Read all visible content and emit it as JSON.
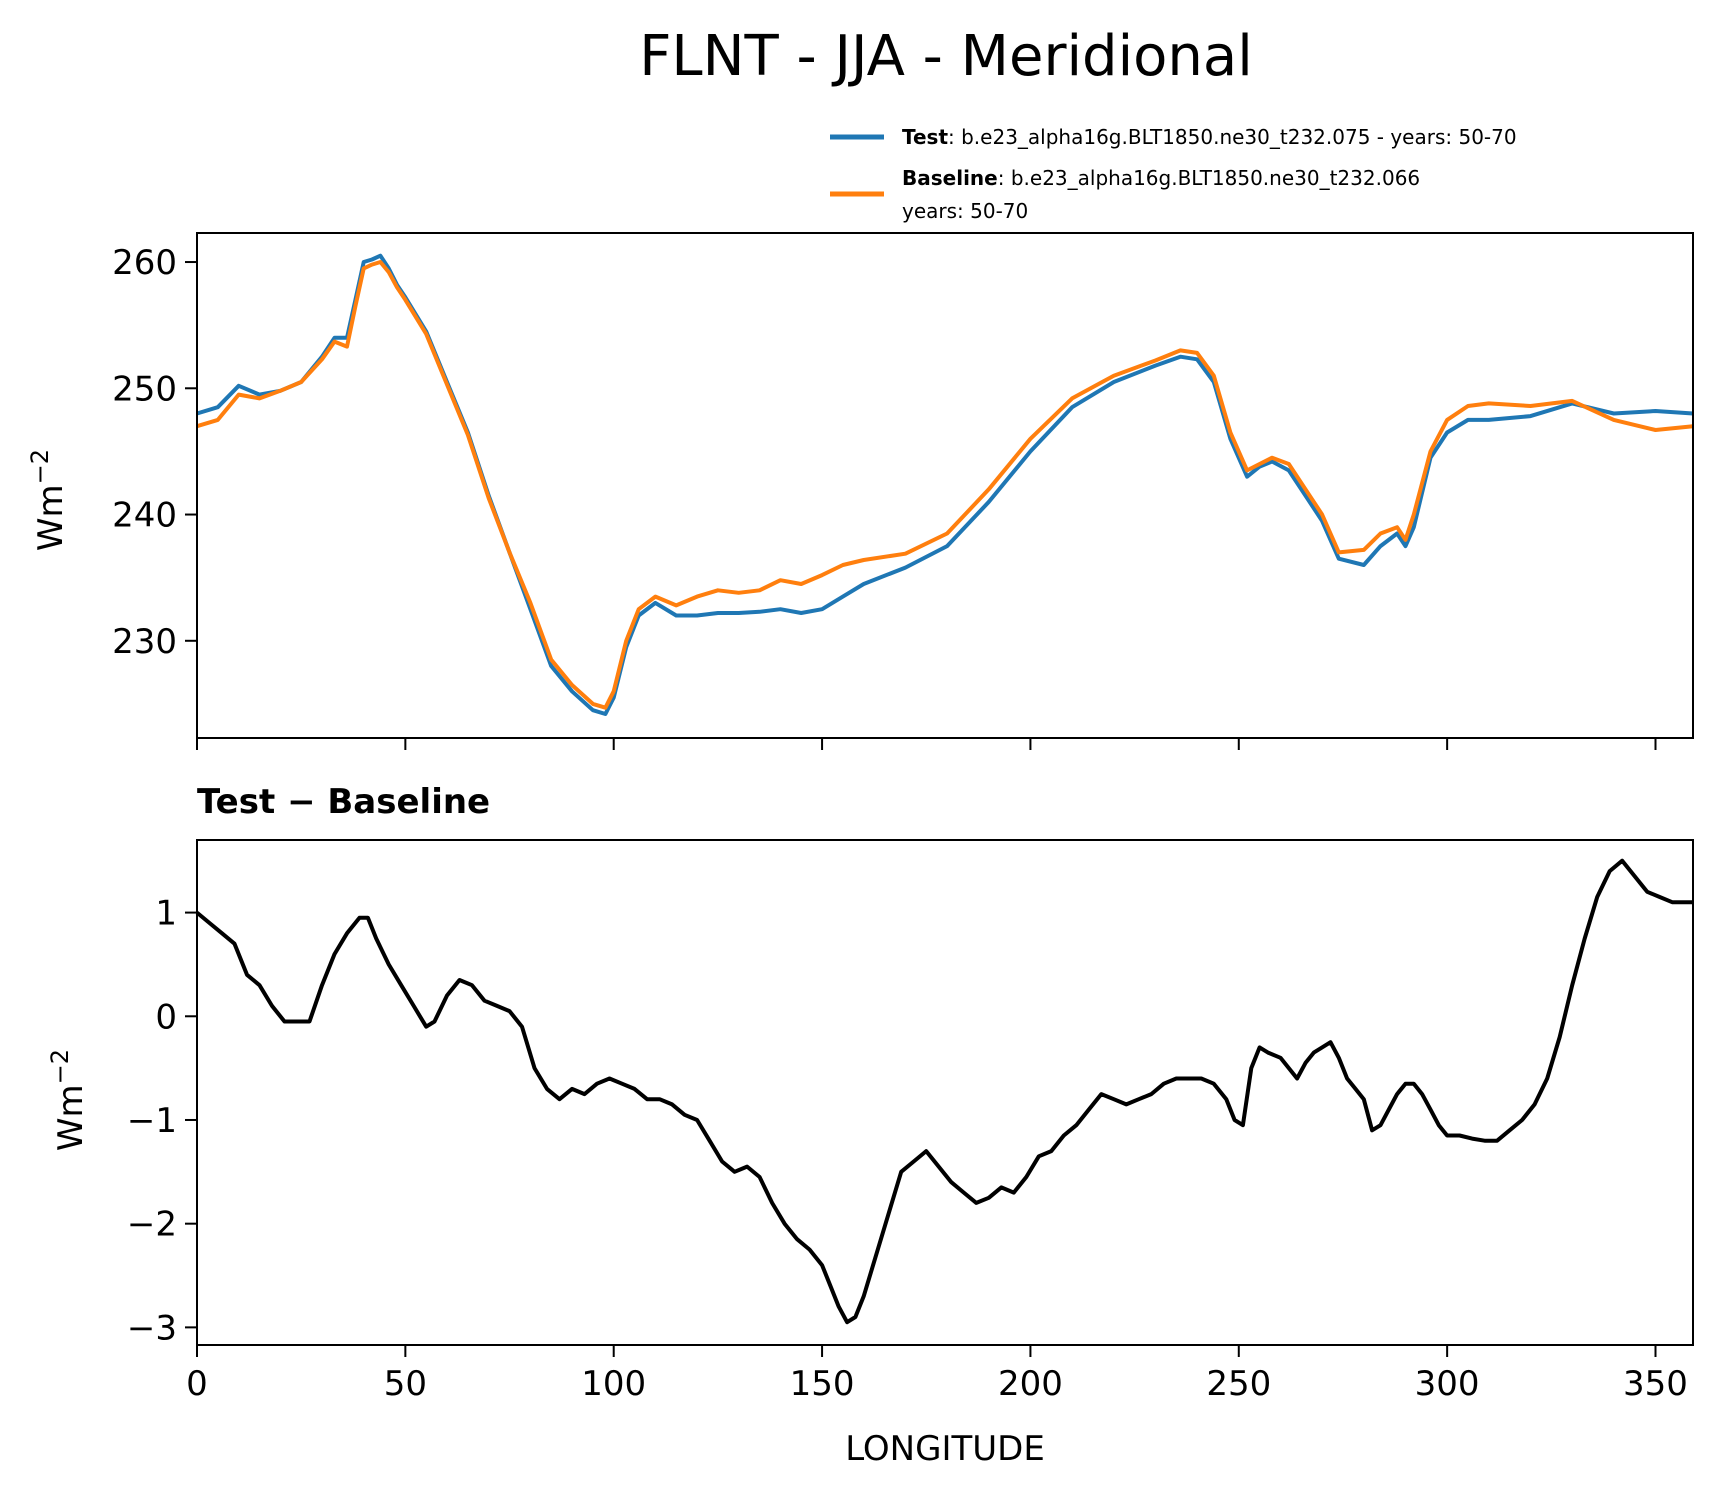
{
  "title": "FLNT - JJA - Meridional",
  "legend": {
    "test_label": "Test",
    "test_text": ": b.e23_alpha16g.BLT1850.ne30_t232.075 - years: 50-70",
    "baseline_label": "Baseline",
    "baseline_text": ": b.e23_alpha16g.BLT1850.ne30_t232.066",
    "baseline_text2": "years: 50-70"
  },
  "colors": {
    "test": "#1f77b4",
    "baseline": "#ff7f0e",
    "diff": "#000000"
  },
  "chart_data": [
    {
      "type": "line",
      "panel": "top",
      "ylabel": "Wm",
      "ylabel_sup": "−2",
      "xlim": [
        0,
        359
      ],
      "ylim": [
        222.3,
        262.3
      ],
      "yticks": [
        230,
        240,
        250,
        260
      ],
      "xticks": [
        0,
        50,
        100,
        150,
        200,
        250,
        300,
        350
      ],
      "series": [
        {
          "name": "Test",
          "x": [
            0,
            5,
            10,
            15,
            20,
            25,
            30,
            33,
            36,
            38,
            40,
            42,
            44,
            46,
            48,
            50,
            55,
            60,
            65,
            70,
            75,
            80,
            85,
            90,
            95,
            98,
            100,
            103,
            106,
            110,
            115,
            120,
            125,
            130,
            135,
            140,
            145,
            150,
            155,
            160,
            170,
            180,
            190,
            200,
            210,
            220,
            230,
            236,
            240,
            244,
            248,
            252,
            255,
            258,
            262,
            266,
            270,
            274,
            280,
            284,
            288,
            290,
            292,
            296,
            300,
            305,
            310,
            320,
            330,
            340,
            350,
            359
          ],
          "values": [
            248,
            248.5,
            250.2,
            249.5,
            249.8,
            250.5,
            252.5,
            254,
            254,
            257,
            260,
            260.2,
            260.5,
            259.5,
            258.2,
            257.2,
            254.5,
            250.5,
            246.5,
            241.5,
            237,
            232.5,
            228,
            226,
            224.5,
            224.2,
            225.5,
            229.5,
            232,
            233,
            232,
            232,
            232.2,
            232.2,
            232.3,
            232.5,
            232.2,
            232.5,
            233.5,
            234.5,
            235.8,
            237.5,
            241,
            245,
            248.5,
            250.5,
            251.8,
            252.5,
            252.3,
            250.5,
            246,
            243,
            243.8,
            244.2,
            243.5,
            241.5,
            239.5,
            236.5,
            236,
            237.5,
            238.5,
            237.5,
            239,
            244.5,
            246.5,
            247.5,
            247.5,
            247.8,
            248.8,
            248,
            248.2,
            248
          ]
        },
        {
          "name": "Baseline",
          "x": [
            0,
            5,
            10,
            15,
            20,
            25,
            30,
            33,
            36,
            38,
            40,
            42,
            44,
            46,
            48,
            50,
            55,
            60,
            65,
            70,
            75,
            80,
            85,
            90,
            95,
            98,
            100,
            103,
            106,
            110,
            115,
            120,
            125,
            130,
            135,
            140,
            145,
            150,
            155,
            160,
            170,
            180,
            190,
            200,
            210,
            220,
            230,
            236,
            240,
            244,
            248,
            252,
            255,
            258,
            262,
            266,
            270,
            274,
            280,
            284,
            288,
            290,
            292,
            296,
            300,
            305,
            310,
            320,
            330,
            340,
            350,
            359
          ],
          "values": [
            247,
            247.5,
            249.5,
            249.2,
            249.8,
            250.5,
            252.3,
            253.7,
            253.3,
            256.5,
            259.5,
            259.8,
            260,
            259.2,
            258,
            257,
            254.3,
            250.3,
            246.3,
            241.3,
            237,
            233,
            228.5,
            226.5,
            225,
            224.7,
            226,
            230,
            232.5,
            233.5,
            232.8,
            233.5,
            234,
            233.8,
            234,
            234.8,
            234.5,
            235.2,
            236,
            236.4,
            236.9,
            238.5,
            242,
            246,
            249.2,
            251,
            252.2,
            253,
            252.8,
            251,
            246.5,
            243.5,
            244,
            244.5,
            244,
            242,
            240,
            237,
            237.2,
            238.5,
            239,
            238,
            240,
            245,
            247.5,
            248.6,
            248.8,
            248.6,
            249,
            247.5,
            246.7,
            247
          ]
        }
      ]
    },
    {
      "type": "line",
      "panel": "bottom",
      "title": "Test − Baseline",
      "ylabel": "Wm",
      "ylabel_sup": "−2",
      "xlabel": "LONGITUDE",
      "xlim": [
        0,
        359
      ],
      "ylim": [
        -3.17,
        1.7
      ],
      "yticks": [
        -3,
        -2,
        -1,
        0,
        1
      ],
      "ytick_labels": [
        "−3",
        "−2",
        "−1",
        "0",
        "1"
      ],
      "xticks": [
        0,
        50,
        100,
        150,
        200,
        250,
        300,
        350
      ],
      "xtick_labels": [
        "0",
        "50",
        "100",
        "150",
        "200",
        "250",
        "300",
        "350"
      ],
      "series": [
        {
          "name": "Test − Baseline",
          "x": [
            0,
            3,
            6,
            9,
            12,
            15,
            18,
            21,
            24,
            27,
            30,
            33,
            36,
            39,
            41,
            43,
            46,
            49,
            52,
            55,
            57,
            60,
            63,
            66,
            69,
            72,
            75,
            78,
            81,
            84,
            87,
            90,
            93,
            96,
            99,
            102,
            105,
            108,
            111,
            114,
            117,
            120,
            123,
            126,
            129,
            132,
            135,
            138,
            141,
            144,
            147,
            150,
            152,
            154,
            156,
            158,
            160,
            163,
            166,
            169,
            172,
            175,
            178,
            181,
            184,
            187,
            190,
            193,
            196,
            199,
            202,
            205,
            208,
            211,
            214,
            217,
            220,
            223,
            226,
            229,
            232,
            235,
            238,
            241,
            244,
            247,
            249,
            251,
            253,
            255,
            257,
            260,
            262,
            264,
            266,
            268,
            270,
            272,
            274,
            276,
            278,
            280,
            282,
            284,
            286,
            288,
            290,
            292,
            294,
            296,
            298,
            300,
            303,
            306,
            309,
            312,
            315,
            318,
            321,
            324,
            327,
            330,
            333,
            336,
            339,
            342,
            345,
            348,
            351,
            354,
            357,
            359
          ],
          "values": [
            1,
            0.9,
            0.8,
            0.7,
            0.4,
            0.3,
            0.1,
            -0.05,
            -0.05,
            -0.05,
            0.3,
            0.6,
            0.8,
            0.95,
            0.95,
            0.75,
            0.5,
            0.3,
            0.1,
            -0.1,
            -0.05,
            0.2,
            0.35,
            0.3,
            0.15,
            0.1,
            0.05,
            -0.1,
            -0.5,
            -0.7,
            -0.8,
            -0.7,
            -0.75,
            -0.65,
            -0.6,
            -0.65,
            -0.7,
            -0.8,
            -0.8,
            -0.85,
            -0.95,
            -1,
            -1.2,
            -1.4,
            -1.5,
            -1.45,
            -1.55,
            -1.8,
            -2,
            -2.15,
            -2.25,
            -2.4,
            -2.6,
            -2.8,
            -2.95,
            -2.9,
            -2.7,
            -2.3,
            -1.9,
            -1.5,
            -1.4,
            -1.3,
            -1.45,
            -1.6,
            -1.7,
            -1.8,
            -1.75,
            -1.65,
            -1.7,
            -1.55,
            -1.35,
            -1.3,
            -1.15,
            -1.05,
            -0.9,
            -0.75,
            -0.8,
            -0.85,
            -0.8,
            -0.75,
            -0.65,
            -0.6,
            -0.6,
            -0.6,
            -0.65,
            -0.8,
            -1,
            -1.05,
            -0.5,
            -0.3,
            -0.35,
            -0.4,
            -0.5,
            -0.6,
            -0.45,
            -0.35,
            -0.3,
            -0.25,
            -0.4,
            -0.6,
            -0.7,
            -0.8,
            -1.1,
            -1.05,
            -0.9,
            -0.75,
            -0.65,
            -0.65,
            -0.75,
            -0.9,
            -1.05,
            -1.15,
            -1.15,
            -1.18,
            -1.2,
            -1.2,
            -1.1,
            -1,
            -0.85,
            -0.6,
            -0.2,
            0.3,
            0.75,
            1.15,
            1.4,
            1.5,
            1.35,
            1.2,
            1.15,
            1.1,
            1.1,
            1.1
          ]
        }
      ]
    }
  ]
}
